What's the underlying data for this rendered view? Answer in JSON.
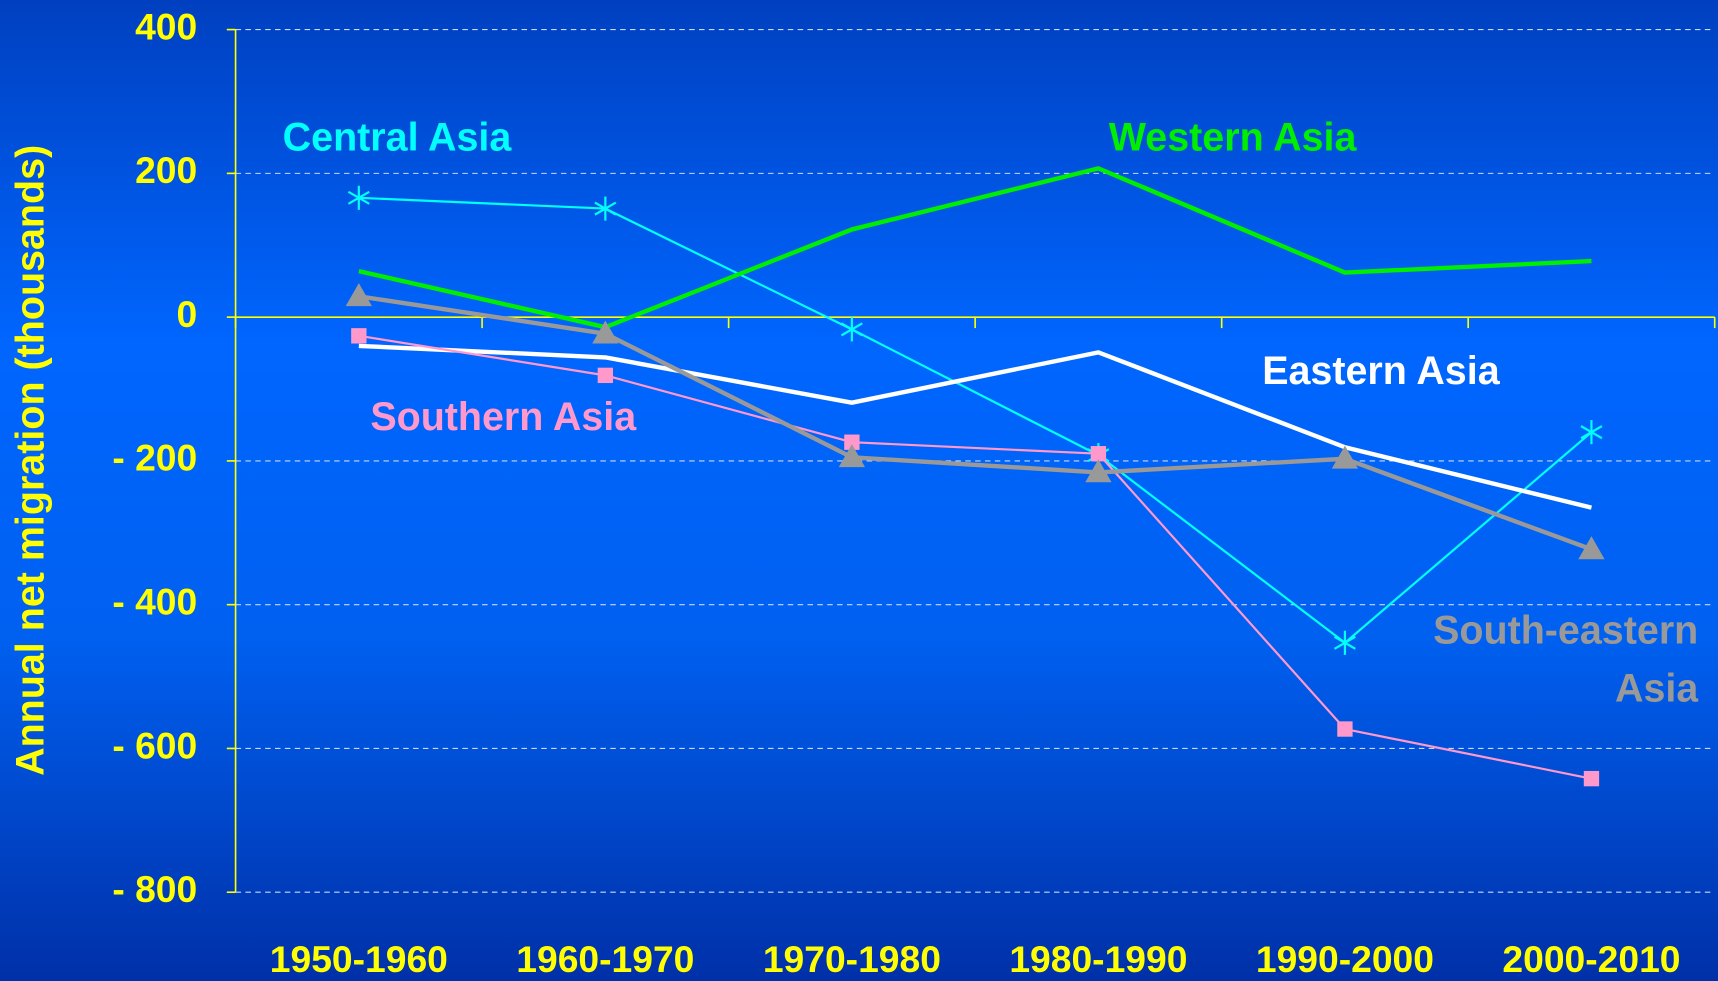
{
  "chart_data": {
    "type": "line",
    "y_label": "Annual net migration (thousands)",
    "categories": [
      "1950-1960",
      "1960-1970",
      "1970-1980",
      "1980-1990",
      "1990-2000",
      "2000-2010"
    ],
    "series": [
      {
        "name": "Central Asia",
        "color": "#00ffff",
        "marker": "star",
        "values": [
          166,
          151,
          -17,
          -192,
          -453,
          -160
        ]
      },
      {
        "name": "Western Asia",
        "color": "#00ee00",
        "marker": null,
        "values": [
          64,
          -14,
          122,
          207,
          62,
          78
        ]
      },
      {
        "name": "Eastern Asia",
        "color": "#ffffff",
        "marker": null,
        "values": [
          -40,
          -56,
          -119,
          -49,
          -181,
          -265
        ]
      },
      {
        "name": "Southern Asia",
        "color": "#ff99cc",
        "marker": "square",
        "values": [
          -26,
          -81,
          -174,
          -190,
          -573,
          -642
        ]
      },
      {
        "name": "South-eastern Asia",
        "color": "#999999",
        "marker": "triangle",
        "values": [
          29,
          -23,
          -195,
          -216,
          -197,
          -323
        ]
      }
    ],
    "ylim": [
      -800,
      400
    ],
    "yticks": [
      400,
      200,
      0,
      {
        "value": -200,
        "label": "- 200"
      },
      {
        "value": -400,
        "label": "- 400"
      },
      {
        "value": -600,
        "label": "- 600"
      },
      {
        "value": -800,
        "label": "- 800"
      }
    ],
    "grid": true
  }
}
